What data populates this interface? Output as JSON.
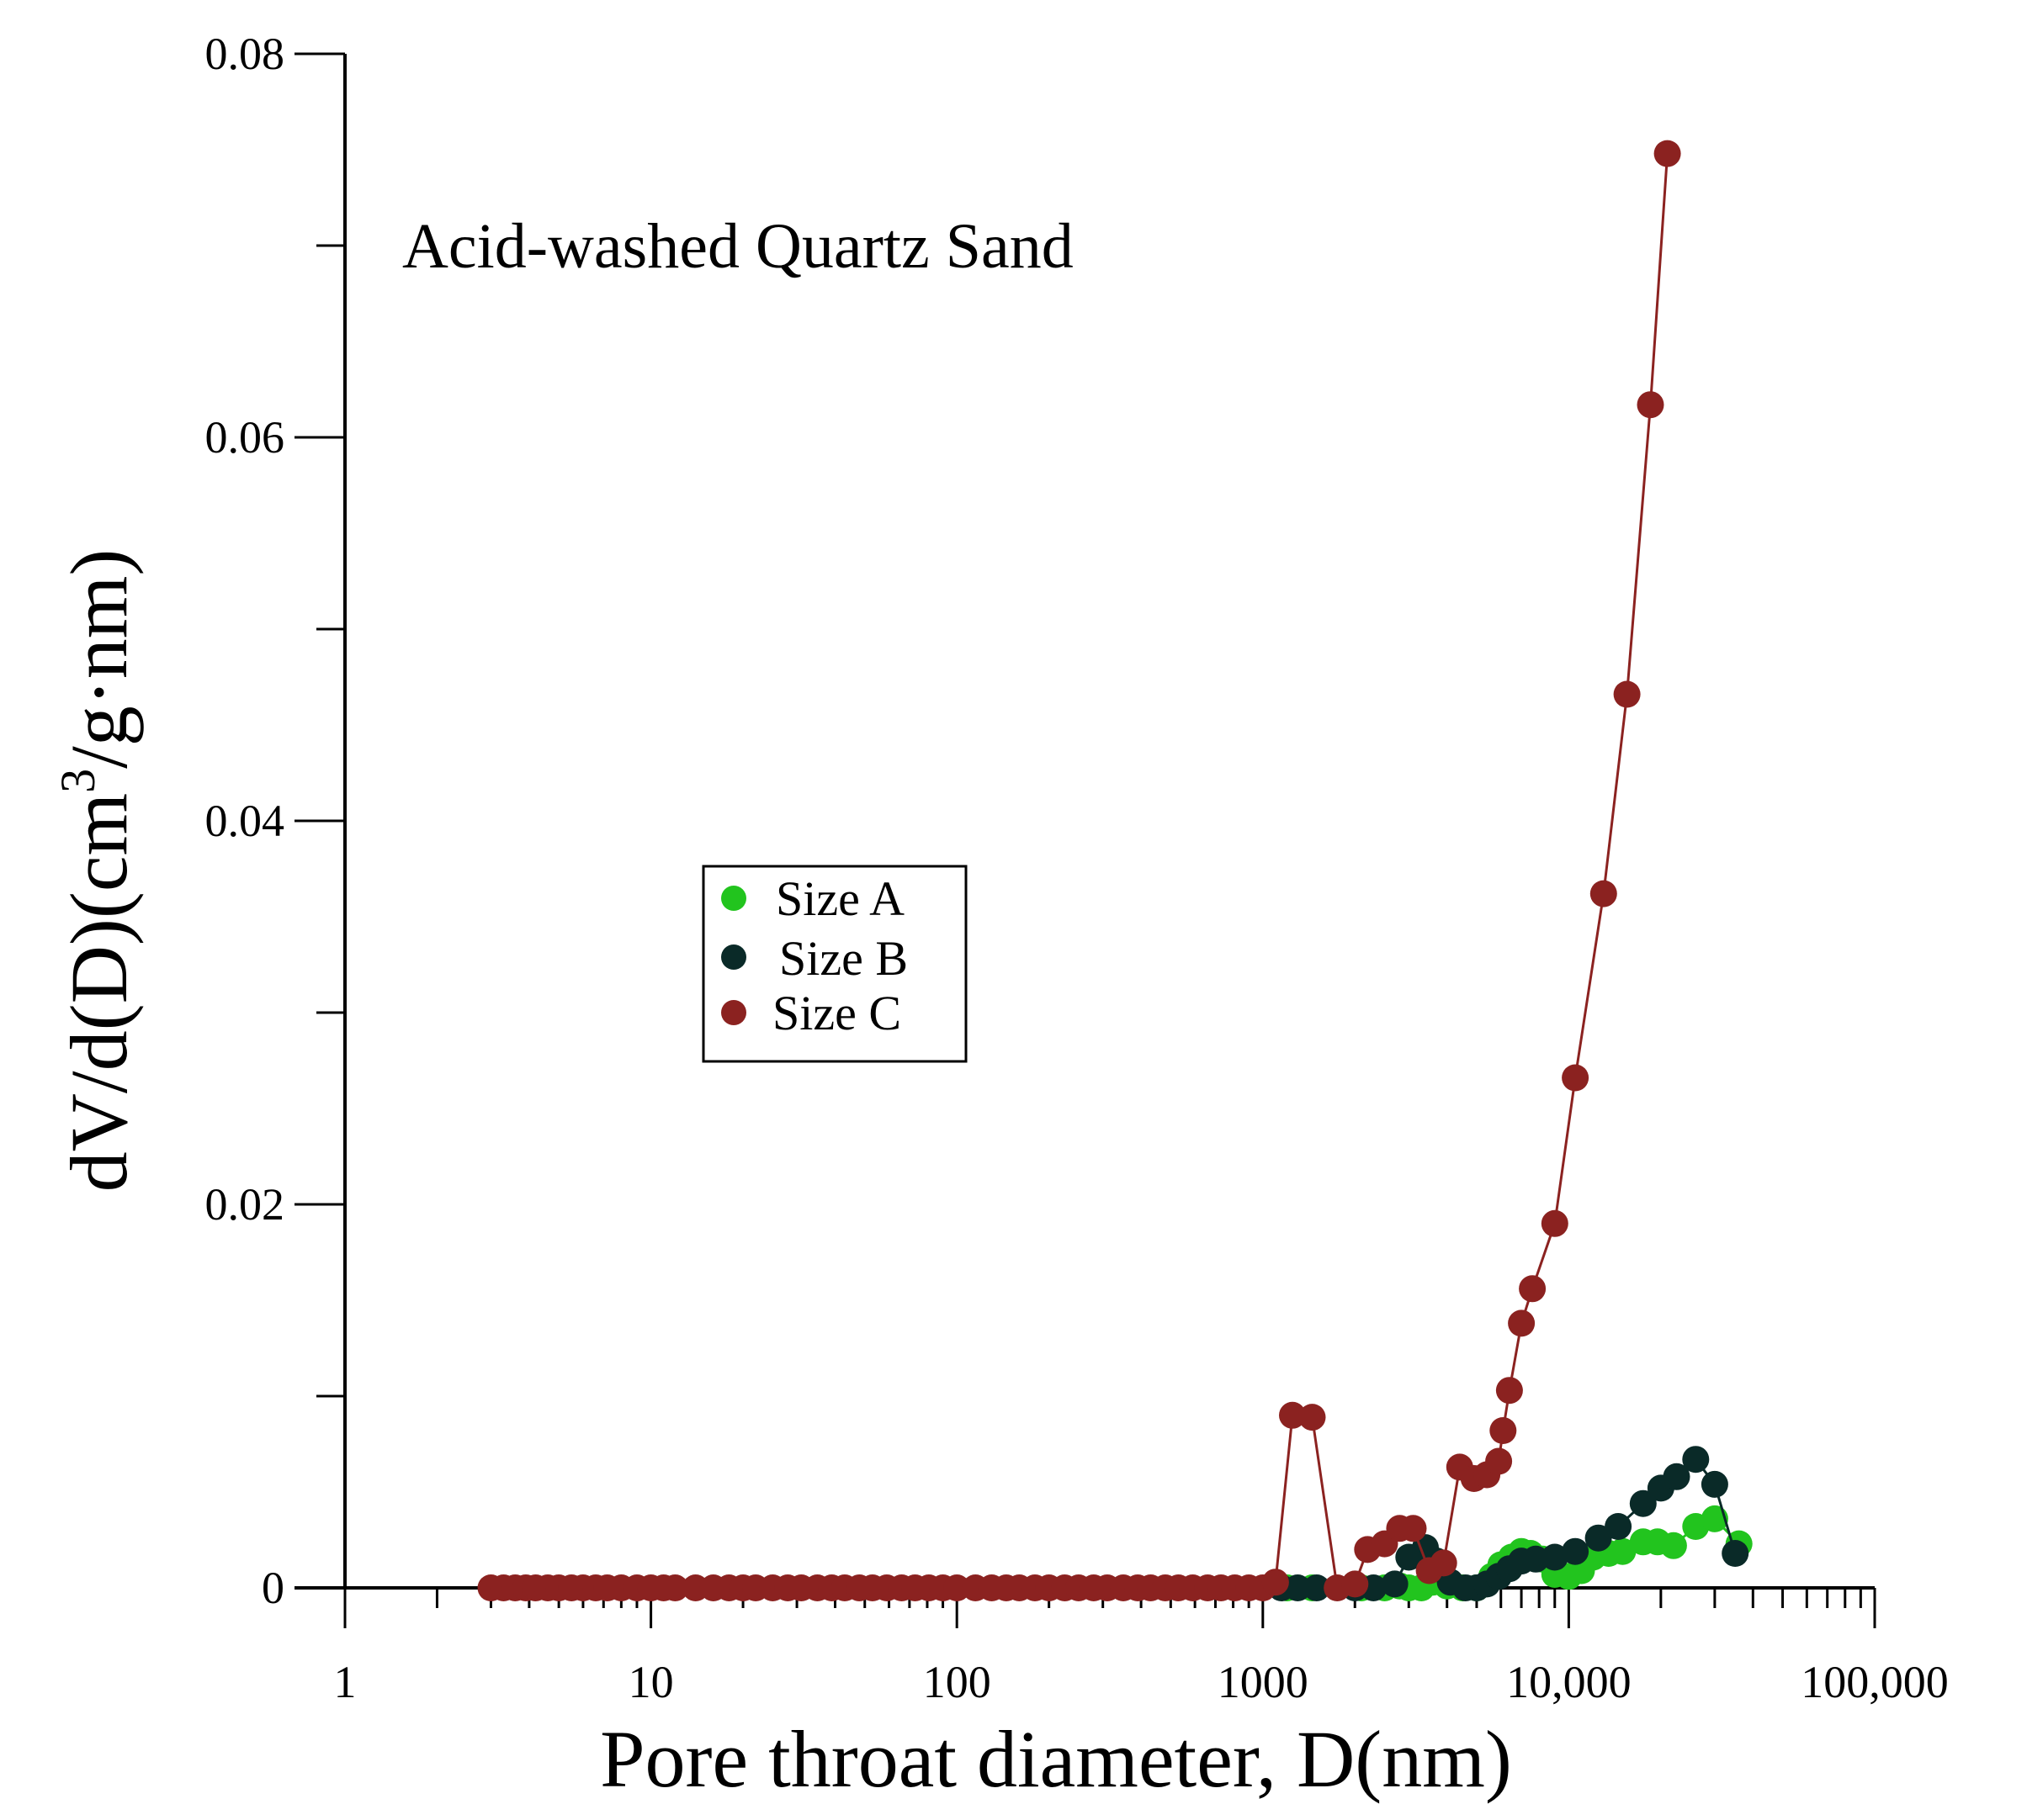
{
  "chart_data": {
    "type": "scatter",
    "title": "Acid-washed Quartz Sand",
    "xlabel": "Pore throat diameter, D(nm)",
    "ylabel_parts": [
      "dV/d(D)(cm",
      "3",
      "/g·nm)"
    ],
    "x_scale": "log",
    "xlim": [
      1,
      100000
    ],
    "ylim": [
      0,
      0.08
    ],
    "x_ticks": [
      {
        "value": 1,
        "label": "1"
      },
      {
        "value": 10,
        "label": "10"
      },
      {
        "value": 100,
        "label": "100"
      },
      {
        "value": 1000,
        "label": "1000"
      },
      {
        "value": 10000,
        "label": "10,000"
      },
      {
        "value": 100000,
        "label": "100,000"
      }
    ],
    "y_ticks": [
      {
        "value": 0,
        "label": "0"
      },
      {
        "value": 0.02,
        "label": "0.02"
      },
      {
        "value": 0.04,
        "label": "0.04"
      },
      {
        "value": 0.06,
        "label": "0.06"
      },
      {
        "value": 0.08,
        "label": "0.08"
      }
    ],
    "y_minor_ticks": [
      0.01,
      0.03,
      0.05,
      0.07
    ],
    "grid": false,
    "legend_position": "center-left",
    "series": [
      {
        "name": "Size A",
        "color": "#22c41e",
        "points": [
          [
            1200,
            0.0
          ],
          [
            1450,
            0.0
          ],
          [
            2100,
            0.0
          ],
          [
            2500,
            0.0
          ],
          [
            2800,
            0.0001
          ],
          [
            3000,
            0.0
          ],
          [
            3300,
            0.0
          ],
          [
            3600,
            0.0003
          ],
          [
            4000,
            0.0001
          ],
          [
            4500,
            0.0
          ],
          [
            5000,
            0.0
          ],
          [
            5600,
            0.0006
          ],
          [
            6000,
            0.0012
          ],
          [
            6500,
            0.0016
          ],
          [
            7000,
            0.0019
          ],
          [
            7500,
            0.0018
          ],
          [
            8200,
            0.0015
          ],
          [
            9000,
            0.0007
          ],
          [
            10000,
            0.0006
          ],
          [
            11000,
            0.0009
          ],
          [
            12000,
            0.0016
          ],
          [
            13500,
            0.0018
          ],
          [
            15000,
            0.0019
          ],
          [
            17500,
            0.0024
          ],
          [
            19500,
            0.0024
          ],
          [
            22000,
            0.0022
          ],
          [
            26000,
            0.0032
          ],
          [
            30000,
            0.0036
          ],
          [
            36000,
            0.0023
          ]
        ]
      },
      {
        "name": "Size B",
        "color": "#0a2a28",
        "points": [
          [
            1150,
            0.0
          ],
          [
            1300,
            0.0
          ],
          [
            1500,
            0.0
          ],
          [
            2000,
            0.0
          ],
          [
            2300,
            0.0
          ],
          [
            2700,
            0.0002
          ],
          [
            3000,
            0.0016
          ],
          [
            3400,
            0.0021
          ],
          [
            3700,
            0.0014
          ],
          [
            4100,
            0.0003
          ],
          [
            4600,
            0.0
          ],
          [
            5000,
            0.0
          ],
          [
            5400,
            0.0002
          ],
          [
            5900,
            0.0006
          ],
          [
            6400,
            0.001
          ],
          [
            7000,
            0.0014
          ],
          [
            7800,
            0.0015
          ],
          [
            9000,
            0.0016
          ],
          [
            10500,
            0.0019
          ],
          [
            12500,
            0.0026
          ],
          [
            14500,
            0.0032
          ],
          [
            17500,
            0.0044
          ],
          [
            20000,
            0.0052
          ],
          [
            22500,
            0.0058
          ],
          [
            26000,
            0.0067
          ],
          [
            30000,
            0.0054
          ],
          [
            35000,
            0.0018
          ]
        ]
      },
      {
        "name": "Size C",
        "color": "#8b2220",
        "points": [
          [
            3,
            0.0
          ],
          [
            3.3,
            0.0
          ],
          [
            3.6,
            0.0
          ],
          [
            3.9,
            0.0
          ],
          [
            4.2,
            0.0
          ],
          [
            4.6,
            0.0
          ],
          [
            5,
            0.0
          ],
          [
            5.5,
            0.0
          ],
          [
            6,
            0.0
          ],
          [
            6.6,
            0.0
          ],
          [
            7.2,
            0.0
          ],
          [
            8,
            0.0
          ],
          [
            9,
            0.0
          ],
          [
            10,
            0.0
          ],
          [
            11,
            0.0
          ],
          [
            12,
            0.0
          ],
          [
            14,
            0.0
          ],
          [
            16,
            0.0
          ],
          [
            18,
            0.0
          ],
          [
            20,
            0.0
          ],
          [
            22,
            0.0
          ],
          [
            25,
            0.0
          ],
          [
            28,
            0.0
          ],
          [
            31,
            0.0
          ],
          [
            35,
            0.0
          ],
          [
            39,
            0.0
          ],
          [
            43,
            0.0
          ],
          [
            48,
            0.0
          ],
          [
            53,
            0.0
          ],
          [
            59,
            0.0
          ],
          [
            66,
            0.0
          ],
          [
            73,
            0.0
          ],
          [
            81,
            0.0
          ],
          [
            90,
            0.0
          ],
          [
            100,
            0.0
          ],
          [
            115,
            0.0
          ],
          [
            130,
            0.0
          ],
          [
            145,
            0.0
          ],
          [
            160,
            0.0
          ],
          [
            180,
            0.0
          ],
          [
            200,
            0.0
          ],
          [
            225,
            0.0
          ],
          [
            250,
            0.0
          ],
          [
            280,
            0.0
          ],
          [
            310,
            0.0
          ],
          [
            350,
            0.0
          ],
          [
            390,
            0.0
          ],
          [
            430,
            0.0
          ],
          [
            480,
            0.0
          ],
          [
            530,
            0.0
          ],
          [
            590,
            0.0
          ],
          [
            660,
            0.0
          ],
          [
            730,
            0.0
          ],
          [
            810,
            0.0
          ],
          [
            900,
            0.0
          ],
          [
            1000,
            0.0
          ],
          [
            1100,
            0.0003
          ],
          [
            1250,
            0.009
          ],
          [
            1450,
            0.0089
          ],
          [
            1750,
            0.0
          ],
          [
            2000,
            0.0002
          ],
          [
            2200,
            0.002
          ],
          [
            2500,
            0.0023
          ],
          [
            2800,
            0.0031
          ],
          [
            3100,
            0.0031
          ],
          [
            3500,
            0.0009
          ],
          [
            3900,
            0.0013
          ],
          [
            4400,
            0.0063
          ],
          [
            4900,
            0.0057
          ],
          [
            5400,
            0.0059
          ],
          [
            5900,
            0.0066
          ],
          [
            6100,
            0.0082
          ],
          [
            6400,
            0.0103
          ],
          [
            7000,
            0.0138
          ],
          [
            7600,
            0.0156
          ],
          [
            9000,
            0.019
          ],
          [
            10500,
            0.0266
          ],
          [
            13000,
            0.0362
          ],
          [
            15500,
            0.0466
          ],
          [
            18500,
            0.0617
          ],
          [
            21000,
            0.0748
          ]
        ]
      }
    ]
  }
}
